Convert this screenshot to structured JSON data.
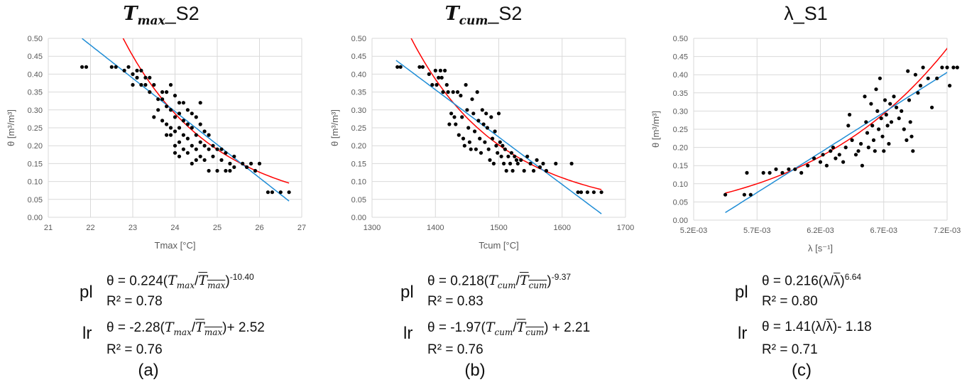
{
  "chart_data": [
    {
      "type": "scatter",
      "title": "Tmax_S2",
      "title_parts": {
        "main": "T",
        "sub": "max",
        "suffix": "_S2"
      },
      "xlabel": "Tmax [°C]",
      "ylabel": "θ [m³/m³]",
      "xlim": [
        21,
        27
      ],
      "ylim": [
        0,
        0.5
      ],
      "xticks": [
        "21",
        "22",
        "23",
        "24",
        "25",
        "26",
        "27"
      ],
      "yticks": [
        "0.00",
        "0.05",
        "0.10",
        "0.15",
        "0.20",
        "0.25",
        "0.30",
        "0.35",
        "0.40",
        "0.45",
        "0.50"
      ],
      "grid": true,
      "colors": {
        "points": "#000000",
        "power_fit": "#ff0000",
        "linear_fit": "#1f8dd6",
        "grid": "#d9d9d9"
      },
      "points": [
        [
          21.8,
          0.42
        ],
        [
          21.9,
          0.42
        ],
        [
          22.5,
          0.42
        ],
        [
          22.6,
          0.42
        ],
        [
          22.8,
          0.41
        ],
        [
          22.9,
          0.42
        ],
        [
          23.0,
          0.4
        ],
        [
          23.0,
          0.37
        ],
        [
          23.1,
          0.41
        ],
        [
          23.1,
          0.39
        ],
        [
          23.2,
          0.41
        ],
        [
          23.2,
          0.37
        ],
        [
          23.3,
          0.39
        ],
        [
          23.3,
          0.37
        ],
        [
          23.4,
          0.39
        ],
        [
          23.4,
          0.35
        ],
        [
          23.5,
          0.37
        ],
        [
          23.5,
          0.28
        ],
        [
          23.6,
          0.33
        ],
        [
          23.6,
          0.3
        ],
        [
          23.7,
          0.35
        ],
        [
          23.7,
          0.33
        ],
        [
          23.7,
          0.27
        ],
        [
          23.8,
          0.35
        ],
        [
          23.8,
          0.31
        ],
        [
          23.8,
          0.26
        ],
        [
          23.8,
          0.23
        ],
        [
          23.9,
          0.37
        ],
        [
          23.9,
          0.3
        ],
        [
          23.9,
          0.25
        ],
        [
          23.9,
          0.23
        ],
        [
          24.0,
          0.34
        ],
        [
          24.0,
          0.28
        ],
        [
          24.0,
          0.24
        ],
        [
          24.0,
          0.2
        ],
        [
          24.0,
          0.18
        ],
        [
          24.1,
          0.32
        ],
        [
          24.1,
          0.29
        ],
        [
          24.1,
          0.25
        ],
        [
          24.1,
          0.21
        ],
        [
          24.1,
          0.17
        ],
        [
          24.2,
          0.32
        ],
        [
          24.2,
          0.27
        ],
        [
          24.2,
          0.23
        ],
        [
          24.2,
          0.19
        ],
        [
          24.3,
          0.3
        ],
        [
          24.3,
          0.26
        ],
        [
          24.3,
          0.22
        ],
        [
          24.3,
          0.18
        ],
        [
          24.4,
          0.29
        ],
        [
          24.4,
          0.25
        ],
        [
          24.4,
          0.2
        ],
        [
          24.4,
          0.15
        ],
        [
          24.5,
          0.28
        ],
        [
          24.5,
          0.23
        ],
        [
          24.5,
          0.19
        ],
        [
          24.5,
          0.16
        ],
        [
          24.6,
          0.32
        ],
        [
          24.6,
          0.26
        ],
        [
          24.6,
          0.21
        ],
        [
          24.6,
          0.17
        ],
        [
          24.7,
          0.24
        ],
        [
          24.7,
          0.2
        ],
        [
          24.7,
          0.16
        ],
        [
          24.8,
          0.23
        ],
        [
          24.8,
          0.19
        ],
        [
          24.8,
          0.13
        ],
        [
          24.9,
          0.2
        ],
        [
          24.9,
          0.17
        ],
        [
          25.0,
          0.19
        ],
        [
          25.0,
          0.13
        ],
        [
          25.1,
          0.19
        ],
        [
          25.1,
          0.16
        ],
        [
          25.2,
          0.18
        ],
        [
          25.2,
          0.13
        ],
        [
          25.3,
          0.15
        ],
        [
          25.3,
          0.13
        ],
        [
          25.4,
          0.17
        ],
        [
          25.4,
          0.14
        ],
        [
          25.6,
          0.15
        ],
        [
          25.7,
          0.14
        ],
        [
          25.8,
          0.15
        ],
        [
          25.9,
          0.13
        ],
        [
          26.0,
          0.15
        ],
        [
          26.2,
          0.07
        ],
        [
          26.3,
          0.07
        ],
        [
          26.5,
          0.07
        ],
        [
          26.7,
          0.07
        ]
      ],
      "series": [
        {
          "name": "pl",
          "type": "power",
          "a": 0.224,
          "b": -10.4,
          "mean_x": 24.6
        },
        {
          "name": "lr",
          "type": "linear",
          "a": -2.28,
          "c": 2.52,
          "mean_x": 24.6
        }
      ],
      "fit_range": [
        21.8,
        26.7
      ],
      "equations": {
        "pl_tag": "pl",
        "pl_prefix": "θ = 0.224(",
        "pl_suffix": ")",
        "pl_exp": "-10.40",
        "pl_r2": "R² = 0.78",
        "lr_tag": "lr",
        "lr_prefix": "θ = -2.28(",
        "lr_suffix": ")+ 2.52",
        "lr_r2": "R² = 0.76",
        "var": "T",
        "var_sub": "max"
      },
      "panel_label": "(a)"
    },
    {
      "type": "scatter",
      "title": "Tcum_S2",
      "title_parts": {
        "main": "T",
        "sub": "cum",
        "suffix": "_S2"
      },
      "xlabel": "Tcum [°C]",
      "ylabel": "θ [m³/m³]",
      "xlim": [
        1300,
        1700
      ],
      "ylim": [
        0,
        0.5
      ],
      "xticks": [
        "1300",
        "1400",
        "1500",
        "1600",
        "1700"
      ],
      "yticks": [
        "0.00",
        "0.05",
        "0.10",
        "0.15",
        "0.20",
        "0.25",
        "0.30",
        "0.35",
        "0.40",
        "0.45",
        "0.50"
      ],
      "grid": true,
      "colors": {
        "points": "#000000",
        "power_fit": "#ff0000",
        "linear_fit": "#1f8dd6",
        "grid": "#d9d9d9"
      },
      "points": [
        [
          1340,
          0.42
        ],
        [
          1345,
          0.42
        ],
        [
          1375,
          0.42
        ],
        [
          1380,
          0.42
        ],
        [
          1390,
          0.4
        ],
        [
          1395,
          0.37
        ],
        [
          1400,
          0.41
        ],
        [
          1402,
          0.37
        ],
        [
          1405,
          0.39
        ],
        [
          1408,
          0.41
        ],
        [
          1410,
          0.39
        ],
        [
          1412,
          0.35
        ],
        [
          1415,
          0.41
        ],
        [
          1418,
          0.37
        ],
        [
          1420,
          0.35
        ],
        [
          1422,
          0.26
        ],
        [
          1425,
          0.29
        ],
        [
          1428,
          0.35
        ],
        [
          1430,
          0.28
        ],
        [
          1432,
          0.26
        ],
        [
          1435,
          0.35
        ],
        [
          1437,
          0.23
        ],
        [
          1440,
          0.34
        ],
        [
          1442,
          0.28
        ],
        [
          1444,
          0.22
        ],
        [
          1446,
          0.2
        ],
        [
          1448,
          0.37
        ],
        [
          1450,
          0.3
        ],
        [
          1452,
          0.25
        ],
        [
          1454,
          0.21
        ],
        [
          1456,
          0.19
        ],
        [
          1458,
          0.33
        ],
        [
          1460,
          0.29
        ],
        [
          1462,
          0.24
        ],
        [
          1464,
          0.19
        ],
        [
          1466,
          0.35
        ],
        [
          1468,
          0.27
        ],
        [
          1470,
          0.22
        ],
        [
          1472,
          0.18
        ],
        [
          1474,
          0.3
        ],
        [
          1476,
          0.26
        ],
        [
          1478,
          0.21
        ],
        [
          1480,
          0.29
        ],
        [
          1482,
          0.25
        ],
        [
          1484,
          0.19
        ],
        [
          1486,
          0.16
        ],
        [
          1488,
          0.28
        ],
        [
          1490,
          0.22
        ],
        [
          1492,
          0.15
        ],
        [
          1494,
          0.24
        ],
        [
          1496,
          0.2
        ],
        [
          1498,
          0.18
        ],
        [
          1500,
          0.29
        ],
        [
          1502,
          0.21
        ],
        [
          1504,
          0.17
        ],
        [
          1506,
          0.2
        ],
        [
          1508,
          0.15
        ],
        [
          1510,
          0.19
        ],
        [
          1512,
          0.13
        ],
        [
          1515,
          0.17
        ],
        [
          1518,
          0.15
        ],
        [
          1520,
          0.18
        ],
        [
          1522,
          0.13
        ],
        [
          1525,
          0.17
        ],
        [
          1528,
          0.16
        ],
        [
          1530,
          0.15
        ],
        [
          1535,
          0.16
        ],
        [
          1540,
          0.13
        ],
        [
          1545,
          0.17
        ],
        [
          1550,
          0.15
        ],
        [
          1555,
          0.13
        ],
        [
          1560,
          0.16
        ],
        [
          1565,
          0.14
        ],
        [
          1570,
          0.15
        ],
        [
          1575,
          0.13
        ],
        [
          1590,
          0.15
        ],
        [
          1615,
          0.15
        ],
        [
          1625,
          0.07
        ],
        [
          1630,
          0.07
        ],
        [
          1640,
          0.07
        ],
        [
          1650,
          0.07
        ],
        [
          1662,
          0.07
        ]
      ],
      "series": [
        {
          "name": "pl",
          "type": "power",
          "a": 0.218,
          "b": -9.37,
          "mean_x": 1488
        },
        {
          "name": "lr",
          "type": "linear",
          "a": -1.97,
          "c": 2.21,
          "mean_x": 1488
        }
      ],
      "fit_range": [
        1338,
        1662
      ],
      "equations": {
        "pl_tag": "pl",
        "pl_prefix": "θ = 0.218(",
        "pl_suffix": ")",
        "pl_exp": "-9.37",
        "pl_r2": "R² = 0.83",
        "lr_tag": "lr",
        "lr_prefix": "θ = -1.97(",
        "lr_suffix": ") + 2.21",
        "lr_r2": "R² = 0.76",
        "var": "T",
        "var_sub": "cum"
      },
      "panel_label": "(b)"
    },
    {
      "type": "scatter",
      "title": "λ_S1",
      "title_parts": {
        "main": "λ_S1",
        "sub": "",
        "suffix": ""
      },
      "xlabel": "λ [s⁻¹]",
      "ylabel": "θ [m³/m³]",
      "xlim": [
        0.0052,
        0.0072
      ],
      "ylim": [
        0,
        0.5
      ],
      "xticks": [
        "5.2E-03",
        "5.7E-03",
        "6.2E-03",
        "6.7E-03",
        "7.2E-03"
      ],
      "yticks": [
        "0.00",
        "0.05",
        "0.10",
        "0.15",
        "0.20",
        "0.25",
        "0.30",
        "0.35",
        "0.40",
        "0.45",
        "0.50"
      ],
      "grid": true,
      "colors": {
        "points": "#000000",
        "power_fit": "#ff0000",
        "linear_fit": "#1f8dd6",
        "grid": "#d9d9d9"
      },
      "points": [
        [
          0.00545,
          0.07
        ],
        [
          0.0056,
          0.07
        ],
        [
          0.00565,
          0.07
        ],
        [
          0.00562,
          0.13
        ],
        [
          0.00575,
          0.13
        ],
        [
          0.0058,
          0.13
        ],
        [
          0.00585,
          0.14
        ],
        [
          0.0059,
          0.13
        ],
        [
          0.00595,
          0.14
        ],
        [
          0.006,
          0.14
        ],
        [
          0.00605,
          0.13
        ],
        [
          0.0061,
          0.15
        ],
        [
          0.00615,
          0.17
        ],
        [
          0.0062,
          0.16
        ],
        [
          0.00622,
          0.18
        ],
        [
          0.00625,
          0.15
        ],
        [
          0.00628,
          0.19
        ],
        [
          0.0063,
          0.2
        ],
        [
          0.00632,
          0.17
        ],
        [
          0.00635,
          0.18
        ],
        [
          0.00638,
          0.16
        ],
        [
          0.0064,
          0.2
        ],
        [
          0.00642,
          0.26
        ],
        [
          0.00643,
          0.29
        ],
        [
          0.00645,
          0.22
        ],
        [
          0.00648,
          0.18
        ],
        [
          0.0065,
          0.19
        ],
        [
          0.00652,
          0.21
        ],
        [
          0.00653,
          0.15
        ],
        [
          0.00655,
          0.34
        ],
        [
          0.00656,
          0.27
        ],
        [
          0.00657,
          0.24
        ],
        [
          0.00658,
          0.2
        ],
        [
          0.0066,
          0.32
        ],
        [
          0.00661,
          0.26
        ],
        [
          0.00662,
          0.22
        ],
        [
          0.00663,
          0.19
        ],
        [
          0.00664,
          0.36
        ],
        [
          0.00665,
          0.3
        ],
        [
          0.00666,
          0.25
        ],
        [
          0.00667,
          0.39
        ],
        [
          0.00668,
          0.28
        ],
        [
          0.00669,
          0.23
        ],
        [
          0.0067,
          0.19
        ],
        [
          0.00671,
          0.33
        ],
        [
          0.00672,
          0.29
        ],
        [
          0.00673,
          0.26
        ],
        [
          0.00674,
          0.21
        ],
        [
          0.00675,
          0.32
        ],
        [
          0.00676,
          0.27
        ],
        [
          0.00678,
          0.34
        ],
        [
          0.0068,
          0.31
        ],
        [
          0.00682,
          0.28
        ],
        [
          0.00684,
          0.3
        ],
        [
          0.00686,
          0.25
        ],
        [
          0.00688,
          0.22
        ],
        [
          0.00689,
          0.41
        ],
        [
          0.0069,
          0.33
        ],
        [
          0.00691,
          0.27
        ],
        [
          0.00692,
          0.23
        ],
        [
          0.00693,
          0.19
        ],
        [
          0.00695,
          0.4
        ],
        [
          0.00697,
          0.35
        ],
        [
          0.00699,
          0.37
        ],
        [
          0.00701,
          0.42
        ],
        [
          0.00705,
          0.39
        ],
        [
          0.00708,
          0.31
        ],
        [
          0.00712,
          0.39
        ],
        [
          0.00716,
          0.42
        ],
        [
          0.0072,
          0.42
        ],
        [
          0.00722,
          0.37
        ],
        [
          0.00725,
          0.42
        ],
        [
          0.00728,
          0.42
        ]
      ],
      "series": [
        {
          "name": "pl",
          "type": "power",
          "a": 0.216,
          "b": 6.64,
          "mean_x": 0.0064
        },
        {
          "name": "lr",
          "type": "linear",
          "a": 1.41,
          "c": -1.18,
          "mean_x": 0.0064
        }
      ],
      "fit_range": [
        0.00545,
        0.00728
      ],
      "equations": {
        "pl_tag": "pl",
        "pl_prefix": "θ = 0.216(λ/",
        "pl_bar": "λ",
        "pl_suffix": ")",
        "pl_exp": "6.64",
        "pl_r2": "R² = 0.80",
        "lr_tag": "lr",
        "lr_prefix": "θ = 1.41(λ/",
        "lr_bar": "λ",
        "lr_suffix": ")- 1.18",
        "lr_r2": "R² = 0.71"
      },
      "panel_label": "(c)"
    }
  ]
}
